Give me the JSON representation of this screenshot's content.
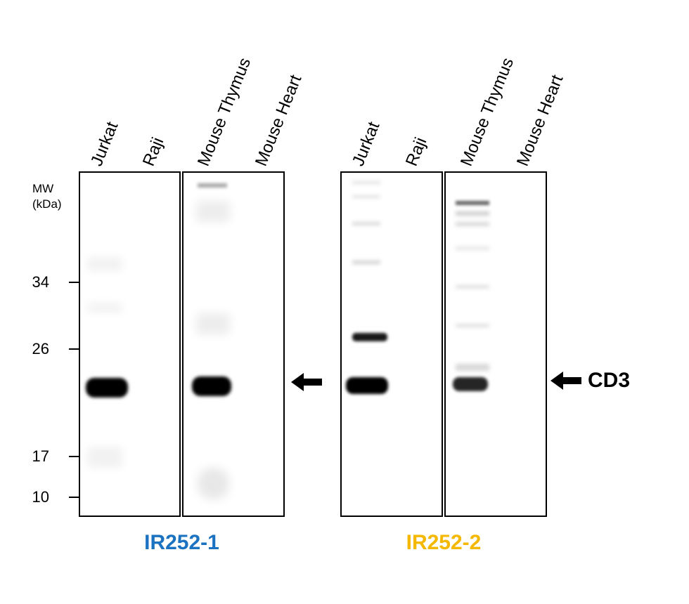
{
  "mw": {
    "title_line1": "MW",
    "title_line2": "(kDa)",
    "markers": [
      "34",
      "26",
      "17",
      "10"
    ]
  },
  "blot1": {
    "antibody": "IR252-1",
    "antibody_color": "#1a72c0",
    "lanes": [
      "Jurkat",
      "Raji",
      "Mouse Thymus",
      "Mouse Heart"
    ]
  },
  "blot2": {
    "antibody": "IR252-2",
    "antibody_color": "#f5b800",
    "lanes": [
      "Jurkat",
      "Raji",
      "Mouse Thymus",
      "Mouse Heart"
    ]
  },
  "target": {
    "label": "CD3",
    "arrow_icon": "left-arrow-icon"
  }
}
